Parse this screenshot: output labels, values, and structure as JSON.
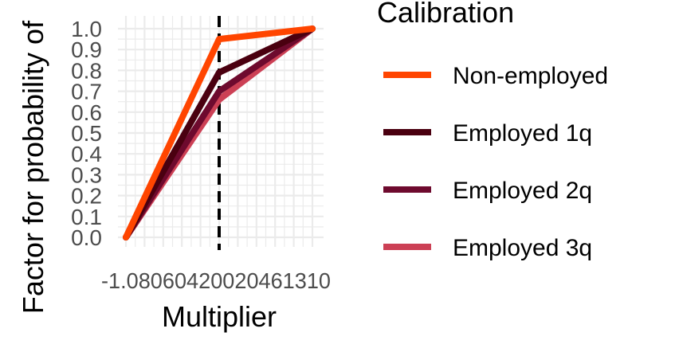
{
  "chart_data": {
    "type": "line",
    "title": "",
    "xlabel": "Multiplier",
    "ylabel": "Factor for probability of",
    "xlim": [
      -1.0,
      1.0
    ],
    "ylim": [
      0.0,
      1.0
    ],
    "x_tick_labels": [
      "-1.0",
      "-0.8",
      "-0.6",
      "-0.4",
      "-0.2",
      "0.0",
      "0.2",
      "0.4",
      "0.6",
      "0.8",
      "1.0"
    ],
    "x_tick_label_text": "-1.08060420020461310",
    "y_tick_labels": [
      "0.0",
      "0.1",
      "0.2",
      "0.3",
      "0.4",
      "0.5",
      "0.6",
      "0.7",
      "0.8",
      "0.9",
      "1.0"
    ],
    "x": [
      -1.0,
      0.0,
      1.0
    ],
    "series": [
      {
        "name": "Non-employed",
        "color": "#FF4500",
        "values": [
          0.0,
          0.95,
          1.0
        ]
      },
      {
        "name": "Employed 1q",
        "color": "#4A0010",
        "values": [
          0.0,
          0.79,
          1.0
        ]
      },
      {
        "name": "Employed 2q",
        "color": "#6E0A2E",
        "values": [
          0.0,
          0.7,
          1.0
        ]
      },
      {
        "name": "Employed 3q",
        "color": "#CC4055",
        "values": [
          0.0,
          0.66,
          1.0
        ]
      }
    ],
    "vline": {
      "x": 0.0,
      "style": "dashed",
      "color": "#000000"
    },
    "legend": {
      "title": "Calibration",
      "position": "right"
    },
    "grid": true
  }
}
